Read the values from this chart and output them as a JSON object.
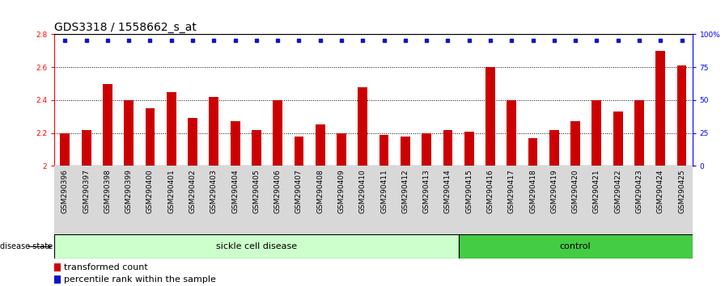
{
  "title": "GDS3318 / 1558662_s_at",
  "categories": [
    "GSM290396",
    "GSM290397",
    "GSM290398",
    "GSM290399",
    "GSM290400",
    "GSM290401",
    "GSM290402",
    "GSM290403",
    "GSM290404",
    "GSM290405",
    "GSM290406",
    "GSM290407",
    "GSM290408",
    "GSM290409",
    "GSM290410",
    "GSM290411",
    "GSM290412",
    "GSM290413",
    "GSM290414",
    "GSM290415",
    "GSM290416",
    "GSM290417",
    "GSM290418",
    "GSM290419",
    "GSM290420",
    "GSM290421",
    "GSM290422",
    "GSM290423",
    "GSM290424",
    "GSM290425"
  ],
  "bar_values": [
    2.2,
    2.22,
    2.5,
    2.4,
    2.35,
    2.45,
    2.29,
    2.42,
    2.27,
    2.22,
    2.4,
    2.18,
    2.25,
    2.2,
    2.48,
    2.19,
    2.18,
    2.2,
    2.22,
    2.21,
    2.6,
    2.4,
    2.17,
    2.22,
    2.27,
    2.4,
    2.33,
    2.4,
    2.7,
    2.61
  ],
  "bar_color": "#cc0000",
  "percentile_color": "#1111cc",
  "ylim_left": [
    2.0,
    2.8
  ],
  "ylim_right": [
    0,
    100
  ],
  "yticks_left": [
    2.0,
    2.2,
    2.4,
    2.6,
    2.8
  ],
  "ytick_labels_left": [
    "2",
    "2.2",
    "2.4",
    "2.6",
    "2.8"
  ],
  "yticks_right": [
    0,
    25,
    50,
    75,
    100
  ],
  "ytick_labels_right": [
    "0",
    "25",
    "50",
    "75",
    "100%"
  ],
  "grid_values": [
    2.2,
    2.4,
    2.6
  ],
  "sickle_count": 19,
  "control_count": 11,
  "sickle_label": "sickle cell disease",
  "control_label": "control",
  "disease_state_label": "disease state",
  "legend_bar_label": "transformed count",
  "legend_pct_label": "percentile rank within the sample",
  "sickle_color": "#ccffcc",
  "control_color": "#44cc44",
  "title_fontsize": 10,
  "tick_fontsize": 6.5,
  "label_fontsize": 8
}
